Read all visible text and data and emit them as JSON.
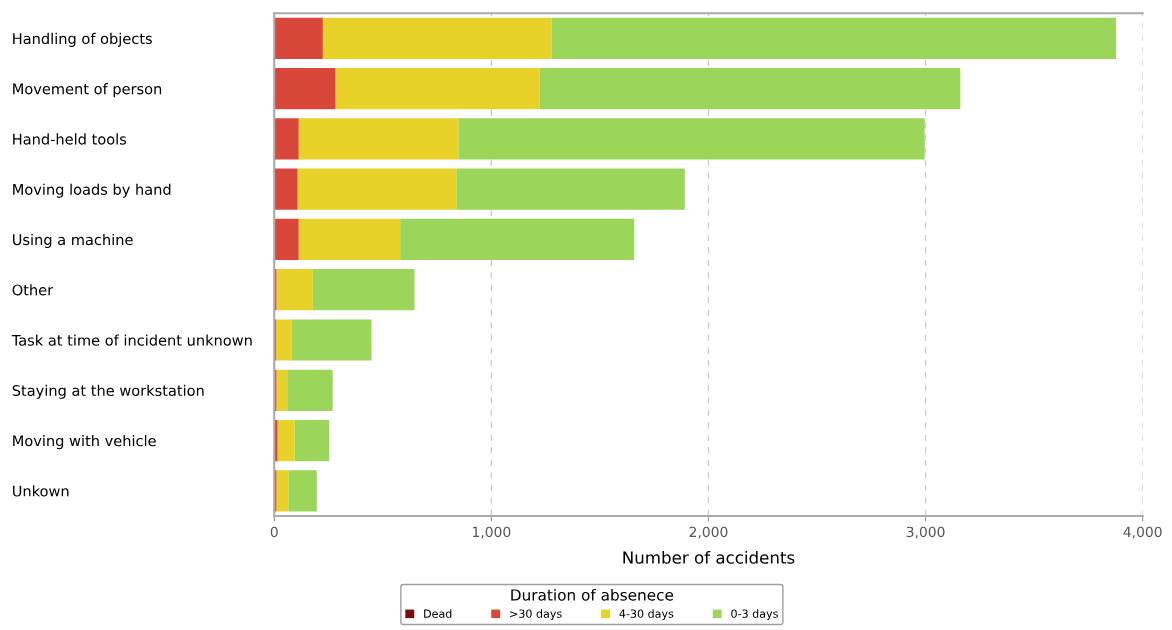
{
  "chart_data": {
    "type": "bar",
    "orientation": "horizontal",
    "stacked": true,
    "categories": [
      "Handling of objects",
      "Movement of person",
      "Hand-held tools",
      "Moving loads by hand",
      "Using a machine",
      "Other",
      "Task at time of incident unknown",
      "Staying at the workstation",
      "Moving with vehicle",
      "Unkown"
    ],
    "series": [
      {
        "name": "Dead",
        "color": "#7b0c0c",
        "values": [
          null,
          null,
          null,
          null,
          null,
          null,
          null,
          null,
          null,
          null
        ]
      },
      {
        "name": ">30 days",
        "color": "#d9473b",
        "values": [
          224,
          283,
          113,
          108,
          113,
          11,
          8,
          11,
          16,
          11
        ]
      },
      {
        "name": "4-30 days",
        "color": "#e8d22a",
        "values": [
          1053,
          940,
          735,
          731,
          467,
          167,
          73,
          49,
          78,
          54
        ]
      },
      {
        "name": "0-3 days",
        "color": "#9bd65a",
        "values": [
          2600,
          1937,
          2148,
          1052,
          1078,
          468,
          367,
          209,
          159,
          131
        ]
      }
    ],
    "xlabel": "Number of accidents",
    "legend_title": "Duration of absenece",
    "xlim": [
      0,
      4000
    ],
    "xticks": [
      0,
      {
        "value": 1000,
        "label": "1,000"
      },
      {
        "value": 2000,
        "label": "2,000"
      },
      {
        "value": 3000,
        "label": "3,000"
      },
      {
        "value": 4000,
        "label": "4,000"
      }
    ],
    "grid": "x",
    "legend": "bottom"
  }
}
